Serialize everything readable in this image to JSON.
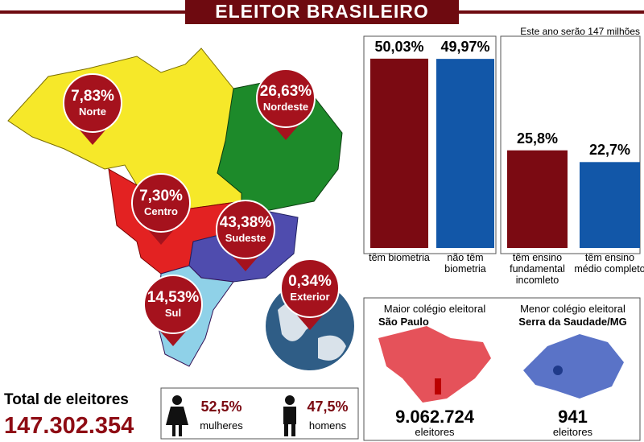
{
  "title": "ELEITOR BRASILEIRO",
  "note": "Este ano serão 147 milhões",
  "map": {
    "regions": [
      {
        "name": "Norte",
        "share": "7,83%"
      },
      {
        "name": "Nordeste",
        "share": "26,63%"
      },
      {
        "name": "Centro",
        "share": "7,30%"
      },
      {
        "name": "Sudeste",
        "share": "43,38%"
      },
      {
        "name": "Sul",
        "share": "14,53%"
      },
      {
        "name": "Exterior",
        "share": "0,34%"
      }
    ]
  },
  "biometria": {
    "categories": [
      "têm biometria",
      "não têm biometria"
    ],
    "values": [
      50.03,
      49.97
    ],
    "value_labels": [
      "50,03%",
      "49,97%"
    ],
    "colors": [
      "#7b0a12",
      "#1257a8"
    ]
  },
  "ensino": {
    "categories": [
      "têm ensino fundamental incomleto",
      "têm ensino médio completo"
    ],
    "values": [
      25.8,
      22.7
    ],
    "value_labels": [
      "25,8%",
      "22,7%"
    ],
    "colors": [
      "#7b0a12",
      "#1257a8"
    ]
  },
  "total": {
    "label": "Total de eleitores",
    "count": "147.302.354"
  },
  "gender": [
    {
      "share": "52,5%",
      "label": "mulheres"
    },
    {
      "share": "47,5%",
      "label": "homens"
    }
  ],
  "maior": {
    "title": "Maior colégio eleitoral",
    "place": "São Paulo",
    "count": "9.062.724",
    "unit": "eleitores"
  },
  "menor": {
    "title": "Menor colégio eleitoral",
    "place": "Serra da Saudade/MG",
    "count": "941",
    "unit": "eleitores"
  }
}
